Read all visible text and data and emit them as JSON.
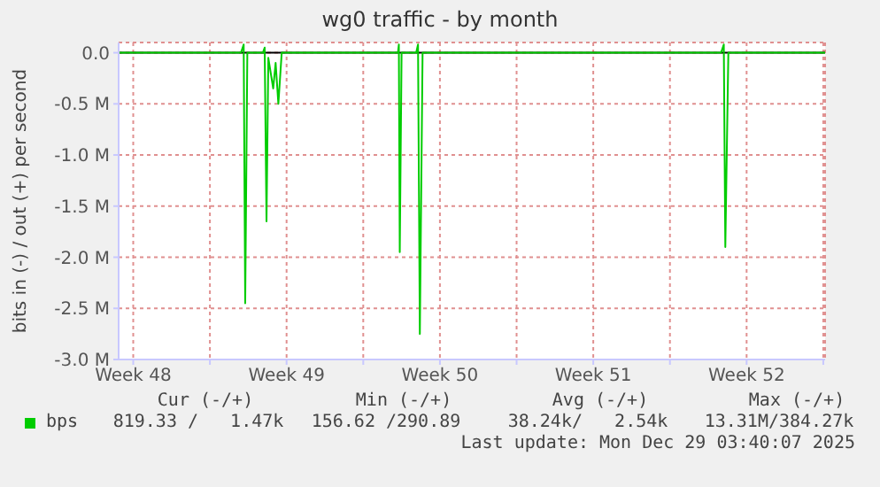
{
  "chart_data": {
    "type": "line",
    "title": "wg0 traffic - by month",
    "ylabel": "bits in (-) / out (+) per second",
    "x": [
      "2025-11-26T20:00",
      "2025-12-02T10:00",
      "2025-12-02T13:00",
      "2025-12-02T14:40",
      "2025-12-02T17:00",
      "2025-12-03T10:00",
      "2025-12-03T12:00",
      "2025-12-03T14:00",
      "2025-12-03T16:00",
      "2025-12-03T21:20",
      "2025-12-04T00:00",
      "2025-12-04T03:00",
      "2025-12-04T06:40",
      "2025-12-04T10:00",
      "2025-12-09T14:00",
      "2025-12-09T15:00",
      "2025-12-09T16:00",
      "2025-12-09T18:00",
      "2025-12-10T10:00",
      "2025-12-10T12:00",
      "2025-12-10T14:00",
      "2025-12-10T17:00",
      "2025-12-24T08:00",
      "2025-12-24T11:00",
      "2025-12-24T12:40",
      "2025-12-24T16:00",
      "2025-12-29T02:00"
    ],
    "series": [
      {
        "name": "bps",
        "color": "#00cc00",
        "values": [
          0,
          0,
          0.08,
          -2.45,
          0,
          0,
          0.05,
          -1.65,
          -0.05,
          -0.35,
          -0.1,
          -0.5,
          0,
          0,
          0,
          0.08,
          -1.95,
          0,
          0,
          0.08,
          -2.75,
          0,
          0,
          0.08,
          -1.9,
          0,
          0
        ]
      }
    ],
    "xlim": [
      "2025-11-26T20:00",
      "2025-12-29T02:00"
    ],
    "xticks": [
      {
        "value": "2025-11-27T12:00",
        "label": "Week 48"
      },
      {
        "value": "2025-12-01T00:00",
        "label": null
      },
      {
        "value": "2025-12-04T12:00",
        "label": "Week 49"
      },
      {
        "value": "2025-12-08T00:00",
        "label": null
      },
      {
        "value": "2025-12-11T12:00",
        "label": "Week 50"
      },
      {
        "value": "2025-12-15T00:00",
        "label": null
      },
      {
        "value": "2025-12-18T12:00",
        "label": "Week 51"
      },
      {
        "value": "2025-12-22T00:00",
        "label": null
      },
      {
        "value": "2025-12-25T12:00",
        "label": "Week 52"
      },
      {
        "value": "2025-12-29T00:00",
        "label": null
      }
    ],
    "ylim": [
      -3,
      0.1
    ],
    "yticks": [
      {
        "value": -3,
        "label": "-3.0 M"
      },
      {
        "value": -2.5,
        "label": "-2.5 M"
      },
      {
        "value": -2,
        "label": "-2.0 M"
      },
      {
        "value": -1.5,
        "label": "-1.5 M"
      },
      {
        "value": -1,
        "label": "-1.0 M"
      },
      {
        "value": -0.5,
        "label": "-0.5 M"
      },
      {
        "value": 0,
        "label": "0.0"
      }
    ],
    "ref_lines": [
      {
        "axis": "y",
        "value": 0,
        "color": "#000000"
      }
    ],
    "grid": true,
    "legend": "bottom",
    "marker": "none",
    "line_style": "solid",
    "annotations": [
      "Cur (-/+)",
      "Min (-/+)",
      "Avg (-/+)",
      "Max (-/+)",
      "819.33 /   1.47k",
      "156.62 /290.89",
      "38.24k/   2.54k",
      "13.31M/384.27k",
      "Last update: Mon Dec 29 03:40:07 2025"
    ]
  }
}
